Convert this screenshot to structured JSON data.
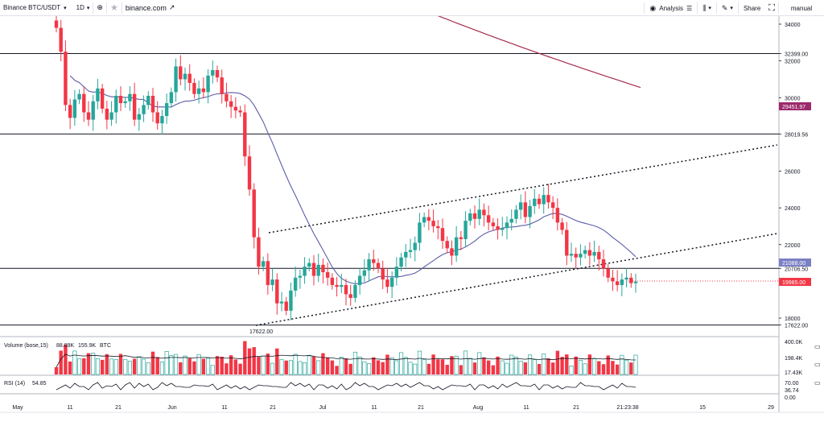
{
  "toolbar": {
    "symbol": "Binance BTC/USDT",
    "interval": "1D",
    "domain_link": "binance.com",
    "analysis_label": "Analysis",
    "share_label": "Share",
    "mode_label": "manual"
  },
  "colors": {
    "up": "#26a69a",
    "down": "#f23645",
    "ma_short": "#5b5ea8",
    "ma_long": "#a52c4a",
    "last_price": "#f23645",
    "ma_long_tag": "#9c2a6c",
    "ma_short_tag": "#7b7fc4"
  },
  "price_scale": {
    "ticks": [
      "34000",
      "32399.00",
      "32000",
      "30000",
      "28019.56",
      "26000",
      "24000",
      "22000",
      "20706.50",
      "18000",
      "17622.00"
    ],
    "tags": {
      "ma_long": "29451.97",
      "ma_short": "21088.00",
      "last": "19985.00"
    }
  },
  "annotations": {
    "low_label": "17622.00"
  },
  "volume_pane": {
    "legend": "Volume (bose,15)",
    "v1": "88.89K",
    "v2": "155.9K",
    "unit": "BTC",
    "axis": [
      "400.0K",
      "198.4K",
      "17.43K"
    ]
  },
  "rsi_pane": {
    "legend": "RSI (14)",
    "value": "54.85",
    "axis": [
      "70.00",
      "36.74",
      "0.00"
    ]
  },
  "time_axis": {
    "labels": [
      "May",
      "11",
      "21",
      "Jun",
      "11",
      "21",
      "Jul",
      "11",
      "21",
      "Aug",
      "11",
      "21",
      "21:23:38",
      "15",
      "29"
    ]
  },
  "chart_data": {
    "type": "candlestick",
    "symbol": "Binance BTC/USDT",
    "interval": "1D",
    "ylim": [
      17000,
      35000
    ],
    "horizontal_levels": [
      32399.0,
      28019.56,
      20706.5,
      17622.0
    ],
    "last_price": 19985.0,
    "ma_values_at_last": {
      "ma_short": 21088.0,
      "ma_long": 29451.97
    }
  }
}
